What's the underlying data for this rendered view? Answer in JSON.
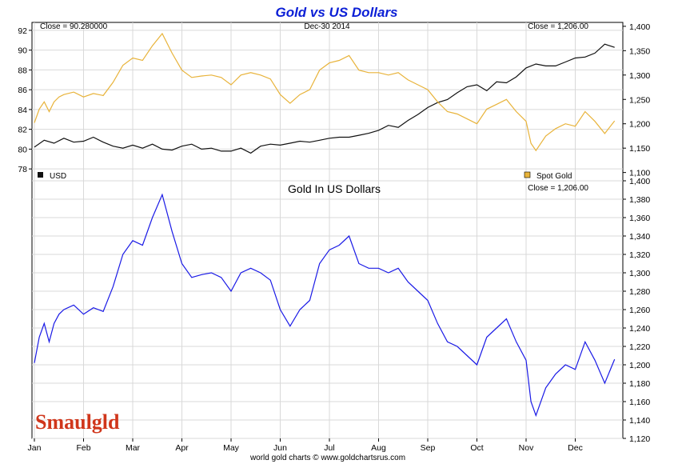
{
  "header": {
    "title": "Gold vs US Dollars"
  },
  "top_panel": {
    "close_left": "Close = 90.280000",
    "date_label": "Dec-30  2014",
    "close_right": "Close = 1,206.00",
    "legend_usd": "USD",
    "legend_gold": "Spot Gold",
    "usd_color": "#111111",
    "gold_color": "#e8b33a"
  },
  "bottom_panel": {
    "title": "Gold In US Dollars",
    "close_right": "Close = 1,206.00",
    "line_color": "#1a1ae6"
  },
  "logo": {
    "text": "Smaulgld"
  },
  "footer": {
    "text": "world gold charts © www.goldchartsrus.com"
  },
  "chart_data": [
    {
      "type": "line",
      "title": "Gold vs US Dollars",
      "categories": [
        "Jan",
        "Feb",
        "Mar",
        "Apr",
        "May",
        "Jun",
        "Jul",
        "Aug",
        "Sep",
        "Oct",
        "Nov",
        "Dec"
      ],
      "left_axis": {
        "ticks": [
          78,
          80,
          82,
          84,
          86,
          88,
          90,
          92
        ],
        "ylim": [
          76.8,
          92.8
        ]
      },
      "right_axis": {
        "ticks": [
          1100,
          1150,
          1200,
          1250,
          1300,
          1350,
          1400
        ],
        "ylim": [
          1083,
          1408
        ]
      },
      "series": [
        {
          "name": "USD",
          "axis": "left",
          "x": [
            0,
            0.2,
            0.4,
            0.6,
            0.8,
            1,
            1.2,
            1.4,
            1.6,
            1.8,
            2,
            2.2,
            2.4,
            2.6,
            2.8,
            3,
            3.2,
            3.4,
            3.6,
            3.8,
            4,
            4.2,
            4.4,
            4.6,
            4.8,
            5,
            5.2,
            5.4,
            5.6,
            5.8,
            6,
            6.2,
            6.4,
            6.6,
            6.8,
            7,
            7.2,
            7.4,
            7.6,
            7.8,
            8,
            8.2,
            8.4,
            8.6,
            8.8,
            9,
            9.2,
            9.4,
            9.6,
            9.8,
            10,
            10.2,
            10.4,
            10.6,
            10.8,
            11,
            11.2,
            11.4,
            11.6,
            11.8
          ],
          "values": [
            80.2,
            80.9,
            80.6,
            81.1,
            80.7,
            80.8,
            81.2,
            80.7,
            80.3,
            80.1,
            80.4,
            80.1,
            80.5,
            80.0,
            79.9,
            80.3,
            80.5,
            80.0,
            80.1,
            79.8,
            79.8,
            80.1,
            79.6,
            80.3,
            80.5,
            80.4,
            80.6,
            80.8,
            80.7,
            80.9,
            81.1,
            81.2,
            81.2,
            81.4,
            81.6,
            81.9,
            82.4,
            82.2,
            82.9,
            83.5,
            84.2,
            84.7,
            85.0,
            85.7,
            86.3,
            86.5,
            85.9,
            86.8,
            86.7,
            87.3,
            88.2,
            88.6,
            88.4,
            88.4,
            88.8,
            89.2,
            89.3,
            89.7,
            90.6,
            90.28
          ]
        },
        {
          "name": "Spot Gold",
          "axis": "right",
          "x": [
            0,
            0.1,
            0.2,
            0.3,
            0.4,
            0.5,
            0.6,
            0.8,
            1,
            1.2,
            1.4,
            1.6,
            1.8,
            2,
            2.2,
            2.4,
            2.6,
            2.8,
            3,
            3.2,
            3.4,
            3.6,
            3.8,
            4,
            4.2,
            4.4,
            4.6,
            4.8,
            5,
            5.2,
            5.4,
            5.6,
            5.8,
            6,
            6.2,
            6.4,
            6.6,
            6.8,
            7,
            7.2,
            7.4,
            7.6,
            7.8,
            8,
            8.2,
            8.4,
            8.6,
            8.8,
            9,
            9.2,
            9.4,
            9.6,
            9.8,
            10,
            10.1,
            10.2,
            10.4,
            10.6,
            10.8,
            11,
            11.2,
            11.4,
            11.6,
            11.8
          ],
          "values": [
            1202,
            1230,
            1245,
            1225,
            1245,
            1255,
            1260,
            1265,
            1255,
            1262,
            1258,
            1285,
            1320,
            1335,
            1330,
            1360,
            1385,
            1345,
            1310,
            1295,
            1298,
            1300,
            1295,
            1280,
            1300,
            1305,
            1300,
            1292,
            1260,
            1242,
            1260,
            1270,
            1310,
            1325,
            1330,
            1340,
            1310,
            1305,
            1305,
            1300,
            1305,
            1290,
            1280,
            1270,
            1245,
            1225,
            1220,
            1210,
            1200,
            1230,
            1240,
            1250,
            1225,
            1205,
            1160,
            1145,
            1175,
            1190,
            1200,
            1195,
            1225,
            1205,
            1180,
            1206
          ]
        }
      ]
    },
    {
      "type": "line",
      "title": "Gold In US Dollars",
      "categories": [
        "Jan",
        "Feb",
        "Mar",
        "Apr",
        "May",
        "Jun",
        "Jul",
        "Aug",
        "Sep",
        "Oct",
        "Nov",
        "Dec"
      ],
      "ylim": [
        1120,
        1400
      ],
      "yticks": [
        1120,
        1140,
        1160,
        1180,
        1200,
        1220,
        1240,
        1260,
        1280,
        1300,
        1320,
        1340,
        1360,
        1380,
        1400
      ],
      "series": [
        {
          "name": "Gold In US Dollars",
          "x": [
            0,
            0.1,
            0.2,
            0.3,
            0.4,
            0.5,
            0.6,
            0.8,
            1,
            1.2,
            1.4,
            1.6,
            1.8,
            2,
            2.2,
            2.4,
            2.6,
            2.8,
            3,
            3.2,
            3.4,
            3.6,
            3.8,
            4,
            4.2,
            4.4,
            4.6,
            4.8,
            5,
            5.2,
            5.4,
            5.6,
            5.8,
            6,
            6.2,
            6.4,
            6.6,
            6.8,
            7,
            7.2,
            7.4,
            7.6,
            7.8,
            8,
            8.2,
            8.4,
            8.6,
            8.8,
            9,
            9.2,
            9.4,
            9.6,
            9.8,
            10,
            10.1,
            10.2,
            10.4,
            10.6,
            10.8,
            11,
            11.2,
            11.4,
            11.6,
            11.8
          ],
          "values": [
            1202,
            1230,
            1245,
            1225,
            1245,
            1255,
            1260,
            1265,
            1255,
            1262,
            1258,
            1285,
            1320,
            1335,
            1330,
            1360,
            1385,
            1345,
            1310,
            1295,
            1298,
            1300,
            1295,
            1280,
            1300,
            1305,
            1300,
            1292,
            1260,
            1242,
            1260,
            1270,
            1310,
            1325,
            1330,
            1340,
            1310,
            1305,
            1305,
            1300,
            1305,
            1290,
            1280,
            1270,
            1245,
            1225,
            1220,
            1210,
            1200,
            1230,
            1240,
            1250,
            1225,
            1205,
            1160,
            1145,
            1175,
            1190,
            1200,
            1195,
            1225,
            1205,
            1180,
            1206
          ]
        }
      ]
    }
  ]
}
